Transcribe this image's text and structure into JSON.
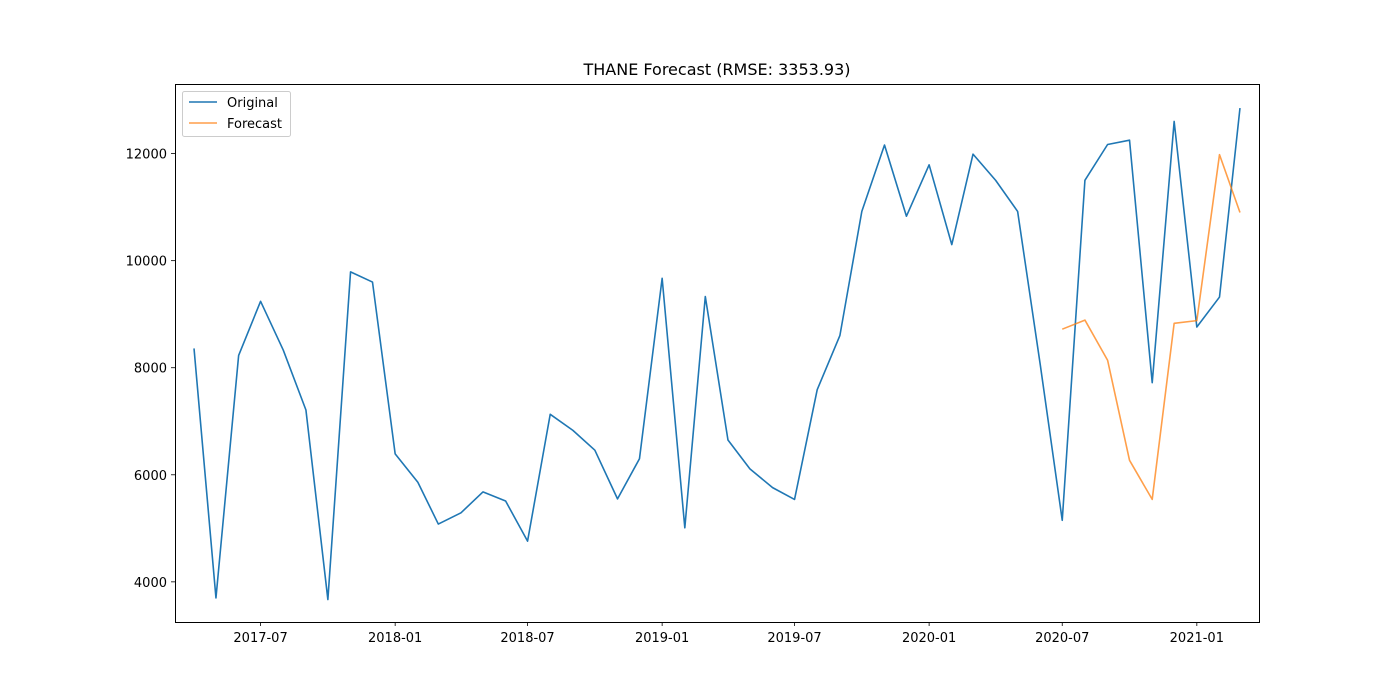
{
  "chart_data": {
    "type": "line",
    "title": "THANE Forecast (RMSE: 3353.93)",
    "xlabel": "",
    "ylabel": "",
    "x_range": [
      "2017-03-06",
      "2021-03-27"
    ],
    "ylim": [
      3250,
      13300
    ],
    "x_ticks": [
      {
        "date": "2017-07-01",
        "label": "2017-07"
      },
      {
        "date": "2018-01-01",
        "label": "2018-01"
      },
      {
        "date": "2018-07-01",
        "label": "2018-07"
      },
      {
        "date": "2019-01-01",
        "label": "2019-01"
      },
      {
        "date": "2019-07-01",
        "label": "2019-07"
      },
      {
        "date": "2020-01-01",
        "label": "2020-01"
      },
      {
        "date": "2020-07-01",
        "label": "2020-07"
      },
      {
        "date": "2021-01-01",
        "label": "2021-01"
      }
    ],
    "y_ticks": [
      4000,
      6000,
      8000,
      10000,
      12000
    ],
    "grid": false,
    "legend": {
      "position": "top-left"
    },
    "series": [
      {
        "name": "Original",
        "color": "#1f77b4",
        "x": [
          "2017-04-01",
          "2017-05-01",
          "2017-06-01",
          "2017-07-01",
          "2017-08-01",
          "2017-09-01",
          "2017-10-01",
          "2017-11-01",
          "2017-12-01",
          "2018-01-01",
          "2018-02-01",
          "2018-03-01",
          "2018-04-01",
          "2018-05-01",
          "2018-06-01",
          "2018-07-01",
          "2018-08-01",
          "2018-09-01",
          "2018-10-01",
          "2018-11-01",
          "2018-12-01",
          "2019-01-01",
          "2019-02-01",
          "2019-03-01",
          "2019-04-01",
          "2019-05-01",
          "2019-06-01",
          "2019-07-01",
          "2019-08-01",
          "2019-09-01",
          "2019-10-01",
          "2019-11-01",
          "2019-12-01",
          "2020-01-01",
          "2020-02-01",
          "2020-03-01",
          "2020-04-01",
          "2020-05-01",
          "2020-06-01",
          "2020-07-01",
          "2020-08-01",
          "2020-09-01",
          "2020-10-01",
          "2020-11-01",
          "2020-12-01",
          "2021-01-01",
          "2021-02-01",
          "2021-03-01"
        ],
        "values": [
          8360,
          3700,
          8230,
          9240,
          8330,
          7210,
          3670,
          9790,
          9600,
          6390,
          5860,
          5080,
          5290,
          5680,
          5510,
          4760,
          7130,
          6830,
          6460,
          5550,
          6300,
          9670,
          5010,
          9330,
          6650,
          6110,
          5760,
          5540,
          7590,
          8600,
          10920,
          12160,
          10830,
          11790,
          10300,
          11990,
          11500,
          10920,
          8050,
          5150,
          11500,
          12170,
          12250,
          7720,
          12600,
          8760,
          9320,
          12850
        ]
      },
      {
        "name": "Forecast",
        "color": "#ff7f0e",
        "x": [
          "2020-07-01",
          "2020-08-01",
          "2020-09-01",
          "2020-10-01",
          "2020-11-01",
          "2020-12-01",
          "2021-01-01",
          "2021-02-01",
          "2021-03-01"
        ],
        "values": [
          8720,
          8890,
          8140,
          6270,
          5540,
          8830,
          8880,
          11980,
          10900
        ]
      }
    ]
  }
}
